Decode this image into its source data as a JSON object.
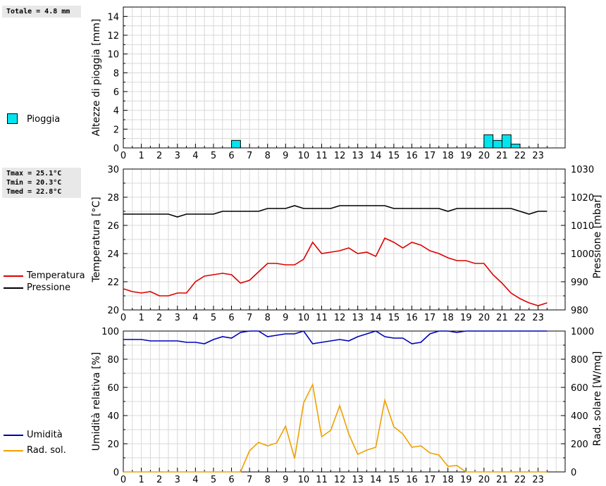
{
  "stats": {
    "rain_total": "Totale = 4.8 mm",
    "tmax": "Tmax = 25.1°C",
    "tmin": "Tmin = 20.3°C",
    "tmed": "Tmed = 22.8°C"
  },
  "legend": {
    "rain": "Pioggia",
    "temperature": "Temperatura",
    "pressure": "Pressione",
    "humidity": "Umidità",
    "solar": "Rad. sol."
  },
  "colors": {
    "rain": "#00e5ee",
    "temperature": "#dd0000",
    "pressure": "#000000",
    "humidity": "#0000bb",
    "solar": "#f0a000",
    "grid": "#d8d8d8"
  },
  "chart_data": [
    {
      "type": "bar",
      "ylabel": "Altezze di pioggia [mm]",
      "xlim": [
        0,
        24.5
      ],
      "ylim": [
        0,
        15
      ],
      "yticks": [
        0,
        2,
        4,
        6,
        8,
        10,
        12,
        14
      ],
      "xticks": [
        "0",
        "1",
        "2",
        "3",
        "4",
        "5",
        "6",
        "7",
        "8",
        "9",
        "10",
        "11",
        "12",
        "13",
        "14",
        "15",
        "16",
        "17",
        "18",
        "19",
        "20",
        "21",
        "22",
        "23"
      ],
      "grid": true,
      "series": [
        {
          "name": "Pioggia",
          "x": [
            6.25,
            20.25,
            20.75,
            21.25,
            21.75
          ],
          "values": [
            0.8,
            1.4,
            0.8,
            1.4,
            0.4
          ]
        }
      ]
    },
    {
      "type": "line",
      "ylabel": "Temperatura [°C]",
      "y2label": "Pressione [mbar]",
      "xlim": [
        0,
        24.5
      ],
      "ylim": [
        20,
        30
      ],
      "y2lim": [
        980,
        1030
      ],
      "yticks": [
        20,
        22,
        24,
        26,
        28,
        30
      ],
      "y2ticks": [
        980,
        990,
        1000,
        1010,
        1020,
        1030
      ],
      "xticks": [
        "0",
        "1",
        "2",
        "3",
        "4",
        "5",
        "6",
        "7",
        "8",
        "9",
        "10",
        "11",
        "12",
        "13",
        "14",
        "15",
        "16",
        "17",
        "18",
        "19",
        "20",
        "21",
        "22",
        "23"
      ],
      "grid": true,
      "series": [
        {
          "name": "Temperatura",
          "axis": "left",
          "x": [
            0,
            0.5,
            1,
            1.5,
            2,
            2.5,
            3,
            3.5,
            4,
            4.5,
            5,
            5.5,
            6,
            6.5,
            7,
            7.5,
            8,
            8.5,
            9,
            9.5,
            10,
            10.5,
            11,
            11.5,
            12,
            12.5,
            13,
            13.5,
            14,
            14.5,
            15,
            15.5,
            16,
            16.5,
            17,
            17.5,
            18,
            18.5,
            19,
            19.5,
            20,
            20.5,
            21,
            21.5,
            22,
            22.5,
            23,
            23.5
          ],
          "values": [
            21.5,
            21.3,
            21.2,
            21.3,
            21.0,
            21.0,
            21.2,
            21.2,
            22.0,
            22.4,
            22.5,
            22.6,
            22.5,
            21.9,
            22.1,
            22.7,
            23.3,
            23.3,
            23.2,
            23.2,
            23.6,
            24.8,
            24.0,
            24.1,
            24.2,
            24.4,
            24.0,
            24.1,
            23.8,
            25.1,
            24.8,
            24.4,
            24.8,
            24.6,
            24.2,
            24.0,
            23.7,
            23.5,
            23.5,
            23.3,
            23.3,
            22.5,
            21.9,
            21.2,
            20.8,
            20.5,
            20.3,
            20.5
          ]
        },
        {
          "name": "Pressione",
          "axis": "right",
          "x": [
            0,
            0.5,
            1,
            1.5,
            2,
            2.5,
            3,
            3.5,
            4,
            4.5,
            5,
            5.5,
            6,
            6.5,
            7,
            7.5,
            8,
            8.5,
            9,
            9.5,
            10,
            10.5,
            11,
            11.5,
            12,
            12.5,
            13,
            13.5,
            14,
            14.5,
            15,
            15.5,
            16,
            16.5,
            17,
            17.5,
            18,
            18.5,
            19,
            19.5,
            20,
            20.5,
            21,
            21.5,
            22,
            22.5,
            23,
            23.5
          ],
          "values": [
            1014,
            1014,
            1014,
            1014,
            1014,
            1014,
            1013,
            1014,
            1014,
            1014,
            1014,
            1015,
            1015,
            1015,
            1015,
            1015,
            1016,
            1016,
            1016,
            1017,
            1016,
            1016,
            1016,
            1016,
            1017,
            1017,
            1017,
            1017,
            1017,
            1017,
            1016,
            1016,
            1016,
            1016,
            1016,
            1016,
            1015,
            1016,
            1016,
            1016,
            1016,
            1016,
            1016,
            1016,
            1015,
            1014,
            1015,
            1015
          ]
        }
      ]
    },
    {
      "type": "line",
      "ylabel": "Umidità relativa [%]",
      "y2label": "Rad. solare [W/mq]",
      "xlim": [
        0,
        24.5
      ],
      "ylim": [
        0,
        100
      ],
      "y2lim": [
        0,
        1000
      ],
      "yticks": [
        0,
        20,
        40,
        60,
        80,
        100
      ],
      "y2ticks": [
        0,
        200,
        400,
        600,
        800,
        1000
      ],
      "xticks": [
        "0",
        "1",
        "2",
        "3",
        "4",
        "5",
        "6",
        "7",
        "8",
        "9",
        "10",
        "11",
        "12",
        "13",
        "14",
        "15",
        "16",
        "17",
        "18",
        "19",
        "20",
        "21",
        "22",
        "23"
      ],
      "grid": true,
      "series": [
        {
          "name": "Umidità",
          "axis": "left",
          "x": [
            0,
            0.5,
            1,
            1.5,
            2,
            2.5,
            3,
            3.5,
            4,
            4.5,
            5,
            5.5,
            6,
            6.5,
            7,
            7.5,
            8,
            8.5,
            9,
            9.5,
            10,
            10.5,
            11,
            11.5,
            12,
            12.5,
            13,
            13.5,
            14,
            14.5,
            15,
            15.5,
            16,
            16.5,
            17,
            17.5,
            18,
            18.5,
            19,
            19.5,
            20,
            20.5,
            21,
            21.5,
            22,
            22.5,
            23,
            23.5
          ],
          "values": [
            94,
            94,
            94,
            93,
            93,
            93,
            93,
            92,
            92,
            91,
            94,
            96,
            95,
            99,
            100,
            100,
            96,
            97,
            98,
            98,
            100,
            91,
            92,
            93,
            94,
            93,
            96,
            98,
            100,
            96,
            95,
            95,
            91,
            92,
            98,
            100,
            100,
            99,
            100,
            100,
            100,
            100,
            100,
            100,
            100,
            100,
            100,
            100
          ]
        },
        {
          "name": "Rad. sol.",
          "axis": "right",
          "x": [
            0,
            0.5,
            1,
            1.5,
            2,
            2.5,
            3,
            3.5,
            4,
            4.5,
            5,
            5.5,
            6,
            6.5,
            7,
            7.5,
            8,
            8.5,
            9,
            9.5,
            10,
            10.5,
            11,
            11.5,
            12,
            12.5,
            13,
            13.5,
            14,
            14.5,
            15,
            15.5,
            16,
            16.5,
            17,
            17.5,
            18,
            18.5,
            19,
            19.5,
            20,
            20.5,
            21,
            21.5,
            22,
            22.5,
            23,
            23.5
          ],
          "values": [
            0,
            0,
            0,
            0,
            0,
            0,
            0,
            0,
            0,
            0,
            0,
            0,
            0,
            0,
            150,
            210,
            185,
            205,
            325,
            95,
            490,
            620,
            250,
            295,
            470,
            270,
            125,
            155,
            175,
            510,
            320,
            270,
            175,
            185,
            135,
            120,
            40,
            45,
            0,
            0,
            0,
            0,
            0,
            0,
            0,
            0,
            0,
            0
          ]
        }
      ]
    }
  ]
}
